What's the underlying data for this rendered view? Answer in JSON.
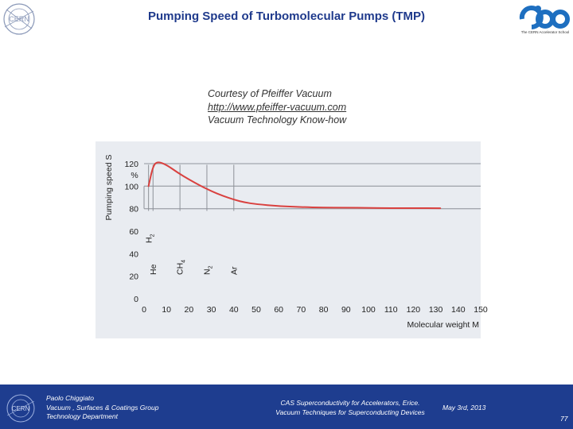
{
  "header": {
    "title": "Pumping Speed of Turbomolecular Pumps (TMP)",
    "logo_left_text": "CERN",
    "logo_right_caption": "The CERN Accelerator School"
  },
  "courtesy": {
    "line1": "Courtesy of Pfeiffer Vacuum",
    "line2": "http://www.pfeiffer-vacuum.com",
    "line3": "Vacuum Technology Know-how"
  },
  "chart_data": {
    "type": "line",
    "title": "",
    "xlabel": "Molecular weight M",
    "ylabel": "Pumping speed S",
    "yunit": "%",
    "xlim": [
      0,
      150
    ],
    "ylim": [
      0,
      120
    ],
    "x_ticks": [
      0,
      10,
      20,
      30,
      40,
      50,
      60,
      70,
      80,
      90,
      100,
      110,
      120,
      130,
      140,
      150
    ],
    "y_ticks": [
      0,
      20,
      40,
      60,
      80,
      100,
      120
    ],
    "y_gridlines": [
      80,
      100,
      120
    ],
    "series": [
      {
        "name": "Pumping speed",
        "color": "#d9413f",
        "x": [
          2,
          4,
          6,
          10,
          15,
          20,
          25,
          30,
          35,
          40,
          45,
          50,
          60,
          70,
          80,
          90,
          100,
          110,
          120,
          132
        ],
        "y": [
          100,
          118,
          122,
          119,
          112,
          106,
          100.5,
          95.5,
          91.5,
          88,
          85.5,
          84,
          82.3,
          81.4,
          81,
          80.9,
          80.7,
          80.5,
          80.5,
          80.4
        ]
      }
    ],
    "gas_markers": [
      {
        "label": "H",
        "sub": "2",
        "x": 2
      },
      {
        "label": "He",
        "sub": "",
        "x": 4
      },
      {
        "label": "CH",
        "sub": "4",
        "x": 16
      },
      {
        "label": "N",
        "sub": "2",
        "x": 28
      },
      {
        "label": "Ar",
        "sub": "",
        "x": 40
      }
    ]
  },
  "footer": {
    "author": "Paolo Chiggiato",
    "group": "Vacuum , Surfaces & Coatings Group",
    "department": "Technology Department",
    "event_line1": "CAS Superconductivity for Accelerators, Erice.",
    "event_line2": "Vacuum Techniques for Superconducting Devices",
    "date": "May 3rd, 2013",
    "page": "77",
    "logo_text": "CERN"
  }
}
